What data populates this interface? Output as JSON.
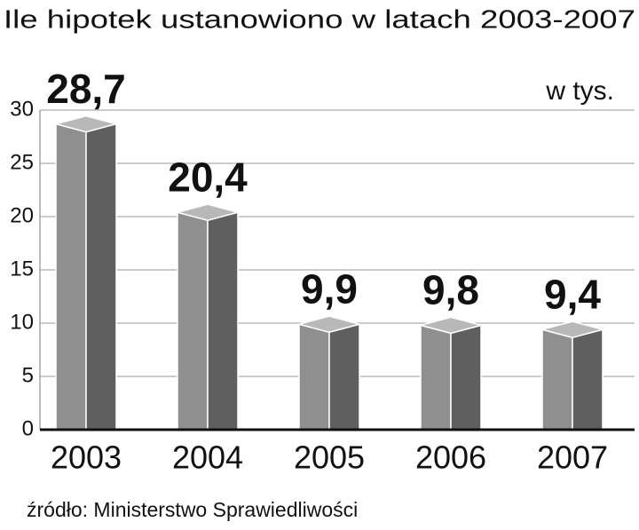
{
  "chart_data": {
    "type": "bar3d",
    "title": "Ile hipotek ustanowiono w latach 2003-2007",
    "unit": "w tys.",
    "source": "źródło: Ministerstwo Sprawiedliwości",
    "categories": [
      "2003",
      "2004",
      "2005",
      "2006",
      "2007"
    ],
    "values": [
      28.7,
      20.4,
      9.9,
      9.8,
      9.4
    ],
    "value_labels": [
      "28,7",
      "20,4",
      "9,9",
      "9,8",
      "9,4"
    ],
    "colors": {
      "front": "#8f8f8f",
      "side": "#5f5f5f",
      "top": "#b8b8b8"
    },
    "ylim": [
      0,
      30
    ],
    "yticks": [
      0,
      5,
      10,
      15,
      20,
      25,
      30
    ],
    "grid": true
  }
}
